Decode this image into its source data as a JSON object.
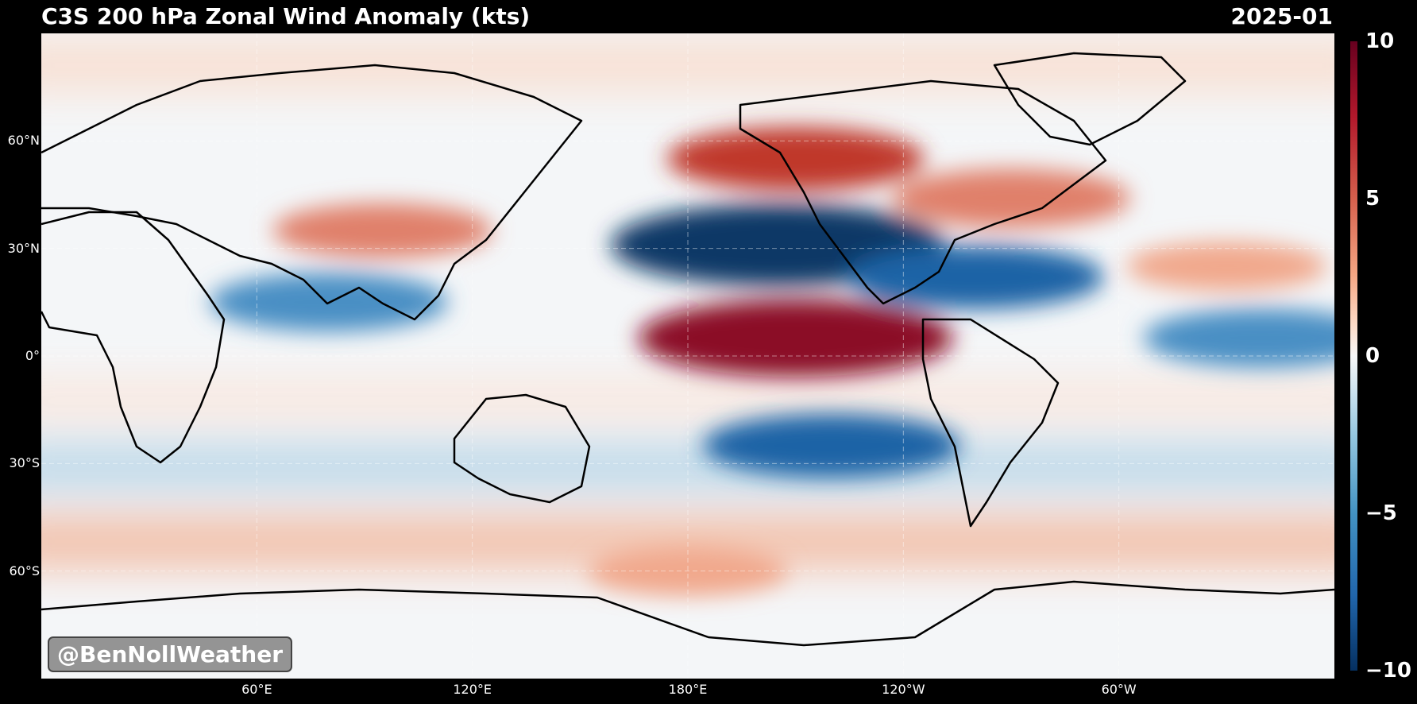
{
  "header": {
    "title": "C3S 200 hPa Zonal Wind Anomaly (kts)",
    "date": "2025-01"
  },
  "map": {
    "latitude_labels": [
      {
        "label": "60°N",
        "lat": 60
      },
      {
        "label": "30°N",
        "lat": 30
      },
      {
        "label": "0°",
        "lat": 0
      },
      {
        "label": "30°S",
        "lat": -30
      },
      {
        "label": "60°S",
        "lat": -60
      }
    ],
    "longitude_labels": [
      {
        "label": "60°E",
        "lon": 60
      },
      {
        "label": "120°E",
        "lon": 120
      },
      {
        "label": "180°E",
        "lon": 180
      },
      {
        "label": "120°W",
        "lon": 240
      },
      {
        "label": "60°W",
        "lon": 300
      }
    ],
    "lon_range": [
      0,
      360
    ],
    "lat_range": [
      -90,
      90
    ],
    "anomaly_features": [
      {
        "sign": "positive",
        "lon": 210,
        "lat": 5,
        "value": 9
      },
      {
        "sign": "negative",
        "lon": 205,
        "lat": 31,
        "value": -10
      },
      {
        "sign": "positive",
        "lon": 210,
        "lat": 55,
        "value": 6
      },
      {
        "sign": "positive",
        "lon": 270,
        "lat": 44,
        "value": 5
      },
      {
        "sign": "negative",
        "lon": 260,
        "lat": 22,
        "value": -6
      },
      {
        "sign": "negative",
        "lon": 80,
        "lat": 15,
        "value": -5
      },
      {
        "sign": "positive",
        "lon": 95,
        "lat": 35,
        "value": 4
      },
      {
        "sign": "negative",
        "lon": 220,
        "lat": -25,
        "value": -6
      },
      {
        "sign": "positive",
        "lon": 180,
        "lat": -60,
        "value": 3
      },
      {
        "sign": "negative",
        "lon": 340,
        "lat": 5,
        "value": -5
      },
      {
        "sign": "positive",
        "lon": 330,
        "lat": 25,
        "value": 3
      }
    ]
  },
  "colorbar": {
    "ticks": [
      {
        "label": "10",
        "value": 10
      },
      {
        "label": "5",
        "value": 5
      },
      {
        "label": "0",
        "value": 0
      },
      {
        "label": "−5",
        "value": -5
      },
      {
        "label": "−10",
        "value": -10
      }
    ],
    "range": [
      -10,
      10
    ],
    "colormap": "RdBu_r"
  },
  "watermark": {
    "text": "@BenNollWeather"
  }
}
